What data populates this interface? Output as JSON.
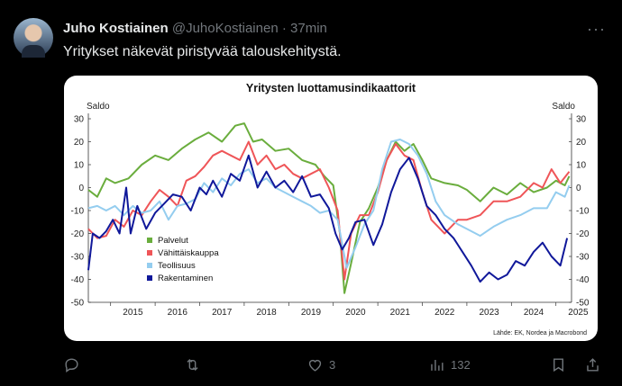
{
  "tweet": {
    "author_name": "Juho Kostiainen",
    "handle": "@JuhoKostiainen",
    "separator": "·",
    "time": "37min",
    "text": "Yritykset näkevät piristyvää talouskehitystä.",
    "more_label": "···"
  },
  "actions": {
    "likes": "3",
    "views": "132"
  },
  "chart_data": {
    "type": "line",
    "title": "Yritysten luottamusindikaattorit",
    "ylabel_left": "Saldo",
    "ylabel_right": "Saldo",
    "source": "Lähde: EK, Nordea ja Macrobond",
    "ylim": [
      -50,
      30
    ],
    "yticks": [
      30,
      20,
      10,
      0,
      -10,
      -20,
      -30,
      -40,
      -50
    ],
    "xlim": [
      2014.5,
      2025.35
    ],
    "xticks": [
      "2015",
      "2016",
      "2017",
      "2018",
      "2019",
      "2020",
      "2021",
      "2022",
      "2023",
      "2024",
      "2025"
    ],
    "grid": false,
    "legend_position": "bottom-left",
    "series": [
      {
        "name": "Palvelut",
        "color": "#6aad3d",
        "points": [
          [
            2014.5,
            -1
          ],
          [
            2014.7,
            -4
          ],
          [
            2014.9,
            4
          ],
          [
            2015.1,
            2
          ],
          [
            2015.4,
            4
          ],
          [
            2015.7,
            10
          ],
          [
            2016.0,
            14
          ],
          [
            2016.3,
            12
          ],
          [
            2016.6,
            17
          ],
          [
            2016.9,
            21
          ],
          [
            2017.2,
            24
          ],
          [
            2017.5,
            20
          ],
          [
            2017.8,
            27
          ],
          [
            2018.0,
            28
          ],
          [
            2018.2,
            20
          ],
          [
            2018.4,
            21
          ],
          [
            2018.7,
            16
          ],
          [
            2019.0,
            17
          ],
          [
            2019.3,
            12
          ],
          [
            2019.6,
            10
          ],
          [
            2019.8,
            5
          ],
          [
            2020.0,
            1
          ],
          [
            2020.15,
            -20
          ],
          [
            2020.25,
            -46
          ],
          [
            2020.4,
            -33
          ],
          [
            2020.6,
            -15
          ],
          [
            2020.8,
            -9
          ],
          [
            2021.0,
            0
          ],
          [
            2021.2,
            12
          ],
          [
            2021.4,
            20
          ],
          [
            2021.6,
            16
          ],
          [
            2021.8,
            19
          ],
          [
            2022.0,
            12
          ],
          [
            2022.2,
            4
          ],
          [
            2022.5,
            2
          ],
          [
            2022.8,
            1
          ],
          [
            2023.0,
            -1
          ],
          [
            2023.3,
            -6
          ],
          [
            2023.6,
            0
          ],
          [
            2023.9,
            -3
          ],
          [
            2024.2,
            2
          ],
          [
            2024.5,
            -2
          ],
          [
            2024.8,
            0
          ],
          [
            2025.0,
            3
          ],
          [
            2025.2,
            1
          ],
          [
            2025.3,
            5
          ]
        ]
      },
      {
        "name": "Vähittäiskauppa",
        "color": "#ef5558",
        "points": [
          [
            2014.5,
            -18
          ],
          [
            2014.7,
            -22
          ],
          [
            2014.9,
            -21
          ],
          [
            2015.1,
            -14
          ],
          [
            2015.3,
            -17
          ],
          [
            2015.5,
            -10
          ],
          [
            2015.7,
            -12
          ],
          [
            2015.9,
            -6
          ],
          [
            2016.1,
            -1
          ],
          [
            2016.3,
            -4
          ],
          [
            2016.5,
            -8
          ],
          [
            2016.7,
            3
          ],
          [
            2016.9,
            5
          ],
          [
            2017.1,
            9
          ],
          [
            2017.3,
            14
          ],
          [
            2017.5,
            16
          ],
          [
            2017.7,
            14
          ],
          [
            2017.9,
            12
          ],
          [
            2018.1,
            20
          ],
          [
            2018.3,
            10
          ],
          [
            2018.5,
            14
          ],
          [
            2018.7,
            8
          ],
          [
            2018.9,
            10
          ],
          [
            2019.1,
            6
          ],
          [
            2019.3,
            4
          ],
          [
            2019.5,
            6
          ],
          [
            2019.7,
            8
          ],
          [
            2019.9,
            0
          ],
          [
            2020.1,
            -10
          ],
          [
            2020.25,
            -40
          ],
          [
            2020.4,
            -20
          ],
          [
            2020.6,
            -12
          ],
          [
            2020.8,
            -12
          ],
          [
            2021.0,
            -2
          ],
          [
            2021.2,
            12
          ],
          [
            2021.4,
            19
          ],
          [
            2021.6,
            14
          ],
          [
            2021.8,
            12
          ],
          [
            2022.0,
            -2
          ],
          [
            2022.2,
            -14
          ],
          [
            2022.5,
            -20
          ],
          [
            2022.8,
            -14
          ],
          [
            2023.0,
            -14
          ],
          [
            2023.3,
            -12
          ],
          [
            2023.6,
            -6
          ],
          [
            2023.9,
            -6
          ],
          [
            2024.2,
            -4
          ],
          [
            2024.5,
            2
          ],
          [
            2024.7,
            0
          ],
          [
            2024.9,
            8
          ],
          [
            2025.1,
            2
          ],
          [
            2025.3,
            7
          ]
        ]
      },
      {
        "name": "Teollisuus",
        "color": "#94cdef",
        "points": [
          [
            2014.5,
            -9
          ],
          [
            2014.7,
            -8
          ],
          [
            2014.9,
            -10
          ],
          [
            2015.1,
            -8
          ],
          [
            2015.3,
            -12
          ],
          [
            2015.5,
            -8
          ],
          [
            2015.7,
            -11
          ],
          [
            2015.9,
            -10
          ],
          [
            2016.1,
            -6
          ],
          [
            2016.3,
            -14
          ],
          [
            2016.5,
            -8
          ],
          [
            2016.7,
            -7
          ],
          [
            2016.9,
            -5
          ],
          [
            2017.1,
            2
          ],
          [
            2017.3,
            -2
          ],
          [
            2017.5,
            4
          ],
          [
            2017.7,
            1
          ],
          [
            2017.9,
            6
          ],
          [
            2018.1,
            8
          ],
          [
            2018.3,
            2
          ],
          [
            2018.5,
            4
          ],
          [
            2018.7,
            0
          ],
          [
            2018.9,
            -2
          ],
          [
            2019.1,
            -4
          ],
          [
            2019.3,
            -6
          ],
          [
            2019.5,
            -8
          ],
          [
            2019.7,
            -11
          ],
          [
            2019.9,
            -10
          ],
          [
            2020.1,
            -14
          ],
          [
            2020.3,
            -35
          ],
          [
            2020.5,
            -26
          ],
          [
            2020.7,
            -16
          ],
          [
            2020.9,
            -10
          ],
          [
            2021.1,
            8
          ],
          [
            2021.3,
            20
          ],
          [
            2021.5,
            21
          ],
          [
            2021.7,
            19
          ],
          [
            2021.9,
            14
          ],
          [
            2022.1,
            6
          ],
          [
            2022.3,
            -6
          ],
          [
            2022.5,
            -12
          ],
          [
            2022.8,
            -16
          ],
          [
            2023.0,
            -18
          ],
          [
            2023.3,
            -21
          ],
          [
            2023.6,
            -17
          ],
          [
            2023.9,
            -14
          ],
          [
            2024.2,
            -12
          ],
          [
            2024.5,
            -9
          ],
          [
            2024.8,
            -9
          ],
          [
            2025.0,
            -2
          ],
          [
            2025.2,
            -4
          ],
          [
            2025.3,
            1
          ]
        ]
      },
      {
        "name": "Rakentaminen",
        "color": "#10189a",
        "points": [
          [
            2014.5,
            -36
          ],
          [
            2014.6,
            -20
          ],
          [
            2014.75,
            -22
          ],
          [
            2014.9,
            -19
          ],
          [
            2015.05,
            -14
          ],
          [
            2015.2,
            -20
          ],
          [
            2015.35,
            0
          ],
          [
            2015.45,
            -20
          ],
          [
            2015.6,
            -8
          ],
          [
            2015.8,
            -18
          ],
          [
            2016.0,
            -11
          ],
          [
            2016.2,
            -7
          ],
          [
            2016.4,
            -3
          ],
          [
            2016.6,
            -4
          ],
          [
            2016.8,
            -10
          ],
          [
            2017.0,
            0
          ],
          [
            2017.15,
            -3
          ],
          [
            2017.3,
            3
          ],
          [
            2017.5,
            -4
          ],
          [
            2017.7,
            6
          ],
          [
            2017.9,
            3
          ],
          [
            2018.1,
            14
          ],
          [
            2018.3,
            0
          ],
          [
            2018.5,
            7
          ],
          [
            2018.7,
            0
          ],
          [
            2018.9,
            3
          ],
          [
            2019.1,
            -2
          ],
          [
            2019.3,
            5
          ],
          [
            2019.5,
            -4
          ],
          [
            2019.7,
            -3
          ],
          [
            2019.9,
            -9
          ],
          [
            2020.05,
            -20
          ],
          [
            2020.2,
            -27
          ],
          [
            2020.35,
            -22
          ],
          [
            2020.5,
            -15
          ],
          [
            2020.7,
            -14
          ],
          [
            2020.9,
            -25
          ],
          [
            2021.1,
            -16
          ],
          [
            2021.3,
            -2
          ],
          [
            2021.5,
            8
          ],
          [
            2021.7,
            13
          ],
          [
            2021.9,
            4
          ],
          [
            2022.1,
            -8
          ],
          [
            2022.3,
            -12
          ],
          [
            2022.5,
            -18
          ],
          [
            2022.7,
            -22
          ],
          [
            2022.9,
            -28
          ],
          [
            2023.1,
            -34
          ],
          [
            2023.3,
            -41
          ],
          [
            2023.5,
            -37
          ],
          [
            2023.7,
            -40
          ],
          [
            2023.9,
            -38
          ],
          [
            2024.1,
            -32
          ],
          [
            2024.3,
            -34
          ],
          [
            2024.5,
            -28
          ],
          [
            2024.7,
            -24
          ],
          [
            2024.9,
            -30
          ],
          [
            2025.1,
            -34
          ],
          [
            2025.25,
            -22
          ]
        ]
      }
    ]
  }
}
